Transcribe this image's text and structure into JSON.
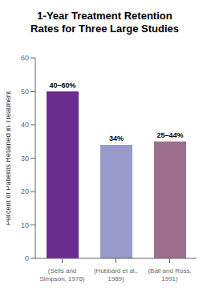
{
  "chart_data": {
    "type": "bar",
    "title": "1-Year Treatment Retention\nRates for Three Large Studies",
    "categories": [
      "(Sells and\nSimpson, 1976)",
      "(Hubbard et al.,\n1989)",
      "(Ball and Ross,\n1991)"
    ],
    "values": [
      50,
      34,
      35
    ],
    "value_labels": [
      "40–60%",
      "34%",
      "25–44%"
    ],
    "colors": [
      "#6a2d8f",
      "#9999cc",
      "#9e6e8e"
    ],
    "ylabel": "Percent of Patients Retained in Treatment",
    "ylim": [
      0,
      60
    ],
    "yticks": [
      0,
      10,
      20,
      30,
      40,
      50,
      60
    ],
    "grid": false
  }
}
